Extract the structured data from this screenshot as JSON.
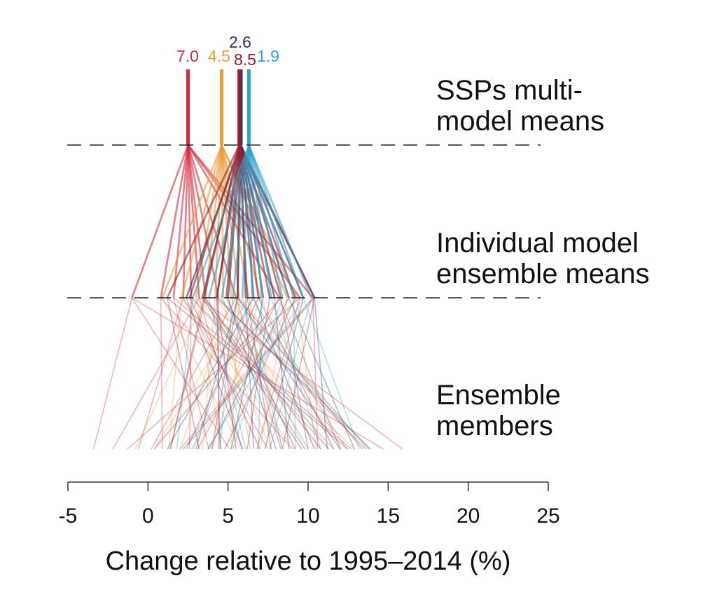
{
  "chart_data": {
    "type": "tree",
    "xlabel": "Change relative to  1995–2014  (%)",
    "xlim": [
      -5,
      25
    ],
    "xticks": [
      -5,
      0,
      5,
      10,
      15,
      20,
      25
    ],
    "tiers": [
      "SSPs multi-\nmodel means",
      "Individual model\nensemble means",
      "Ensemble\nmembers"
    ],
    "scenarios": [
      {
        "name": "7.0",
        "color": "#d42a3c",
        "ssp_mean": 2.5,
        "model_means": [
          -1.0,
          0.8,
          1.6,
          2.2,
          2.7,
          3.2,
          3.6,
          4.4,
          5.5,
          8.2,
          9.5,
          10.3
        ],
        "members": [
          -3.4,
          -2.2,
          -1.3,
          -0.6,
          0.2,
          0.9,
          1.4,
          2.0,
          2.6,
          3.1,
          3.8,
          4.4,
          5.1,
          5.9,
          6.8,
          7.5,
          8.3,
          9.0,
          9.8,
          10.6,
          11.3,
          12.0,
          12.7,
          13.6,
          14.7,
          15.9
        ]
      },
      {
        "name": "4.5",
        "color": "#e99a35",
        "ssp_mean": 4.6,
        "model_means": [
          0.9,
          2.1,
          3.0,
          3.6,
          4.2,
          4.7,
          5.2,
          5.7,
          6.3,
          7.0,
          8.7,
          9.3
        ],
        "members": [
          -0.8,
          0.4,
          1.3,
          2.0,
          2.7,
          3.4,
          4.0,
          4.6,
          5.2,
          5.8,
          6.4,
          7.0,
          7.7,
          8.4,
          9.1,
          9.8,
          10.5,
          11.3,
          12.1,
          12.9,
          13.7
        ]
      },
      {
        "name": "2.6",
        "color": "#22375f",
        "ssp_mean": 5.8,
        "model_means": [
          2.4,
          3.4,
          4.3,
          5.0,
          5.6,
          6.1,
          6.6,
          7.2,
          7.9,
          8.8,
          9.7,
          10.4
        ],
        "members": [
          1.2,
          2.2,
          3.0,
          3.8,
          4.5,
          5.2,
          5.9,
          6.6,
          7.3,
          8.0,
          8.8,
          9.6,
          10.4,
          11.2,
          12.0,
          12.9,
          13.9
        ]
      },
      {
        "name": "8.5",
        "color": "#9e1a2c",
        "ssp_mean": 5.7,
        "model_means": [
          1.2,
          2.6,
          3.5,
          4.3,
          4.9,
          5.6,
          6.2,
          6.9,
          7.6,
          8.3,
          9.2,
          10.4
        ],
        "members": [
          0.4,
          1.4,
          2.4,
          3.2,
          4.0,
          4.8,
          5.5,
          6.2,
          7.0,
          7.7,
          8.4,
          9.2,
          10.0,
          10.8,
          11.6,
          12.5,
          13.4
        ]
      },
      {
        "name": "1.9",
        "color": "#2aa4cc",
        "ssp_mean": 6.3,
        "model_means": [
          2.8,
          3.8,
          4.6,
          5.3,
          5.9,
          6.5,
          7.1,
          7.7,
          8.4,
          9.1,
          9.7,
          10.2
        ],
        "members": [
          1.8,
          2.8,
          3.7,
          4.5,
          5.3,
          6.1,
          6.9,
          7.6,
          8.4,
          9.2,
          10.0,
          10.8,
          11.6,
          12.4,
          13.2,
          13.8
        ]
      }
    ],
    "grid": false,
    "legend": "none"
  }
}
